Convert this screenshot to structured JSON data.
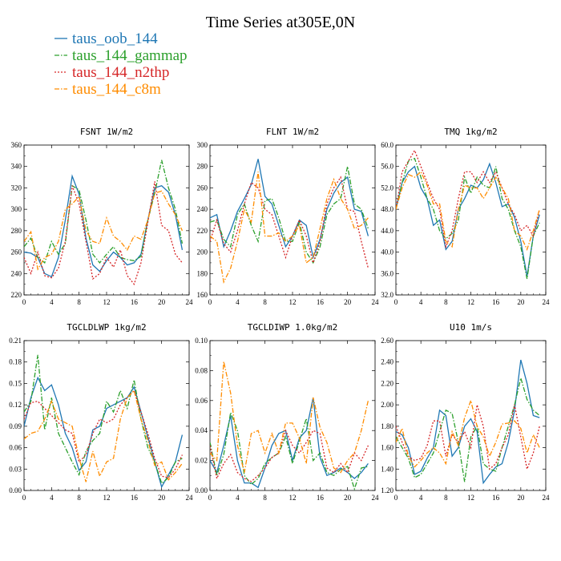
{
  "title": "Time Series at305E,0N",
  "series": [
    {
      "name": "taus_oob_144",
      "color": "#1f77b4",
      "dash": "solid"
    },
    {
      "name": "taus_144_gammap",
      "color": "#2ca02c",
      "dash": "dashdot"
    },
    {
      "name": "taus_144_n2thp",
      "color": "#d62728",
      "dash": "dotted"
    },
    {
      "name": "taus_144_c8m",
      "color": "#ff8c00",
      "dash": "dashdot"
    }
  ],
  "chart_data": [
    {
      "type": "line",
      "title": "FSNT   1W/m2",
      "x": [
        0,
        1,
        2,
        3,
        4,
        5,
        6,
        7,
        8,
        9,
        10,
        11,
        12,
        13,
        14,
        15,
        16,
        17,
        18,
        19,
        20,
        21,
        22,
        23
      ],
      "xlim": [
        0,
        24
      ],
      "xticks": [
        0,
        4,
        8,
        12,
        16,
        20,
        24
      ],
      "ylim": [
        220,
        360
      ],
      "yticks": [
        220,
        240,
        260,
        280,
        300,
        320,
        340,
        360
      ],
      "ytick_labels": [
        "220",
        "240",
        "260",
        "280",
        "300",
        "320",
        "340",
        "360"
      ],
      "series": [
        {
          "name": "taus_oob_144",
          "values": [
            260,
            259,
            255,
            240,
            237,
            255,
            290,
            331,
            314,
            273,
            248,
            242,
            252,
            260,
            255,
            248,
            250,
            258,
            290,
            320,
            322,
            316,
            295,
            262
          ]
        },
        {
          "name": "taus_144_gammap",
          "values": [
            265,
            273,
            255,
            250,
            270,
            258,
            268,
            322,
            318,
            290,
            258,
            250,
            258,
            265,
            255,
            253,
            252,
            256,
            290,
            315,
            346,
            320,
            300,
            268
          ]
        },
        {
          "name": "taus_144_n2thp",
          "values": [
            255,
            240,
            260,
            238,
            236,
            245,
            270,
            322,
            305,
            270,
            235,
            240,
            255,
            246,
            262,
            238,
            230,
            250,
            288,
            326,
            285,
            280,
            258,
            250
          ]
        },
        {
          "name": "taus_144_c8m",
          "values": [
            270,
            279,
            244,
            255,
            258,
            270,
            300,
            305,
            312,
            280,
            270,
            268,
            292,
            275,
            270,
            262,
            275,
            272,
            290,
            315,
            317,
            305,
            295,
            280
          ]
        }
      ]
    },
    {
      "type": "line",
      "title": "FLNT   1W/m2",
      "x": [
        0,
        1,
        2,
        3,
        4,
        5,
        6,
        7,
        8,
        9,
        10,
        11,
        12,
        13,
        14,
        15,
        16,
        17,
        18,
        19,
        20,
        21,
        22,
        23
      ],
      "xlim": [
        0,
        24
      ],
      "xticks": [
        0,
        4,
        8,
        12,
        16,
        20,
        24
      ],
      "ylim": [
        160,
        300
      ],
      "yticks": [
        160,
        180,
        200,
        220,
        240,
        260,
        280,
        300
      ],
      "ytick_labels": [
        "160",
        "180",
        "200",
        "220",
        "240",
        "260",
        "280",
        "300"
      ],
      "series": [
        {
          "name": "taus_oob_144",
          "values": [
            232,
            235,
            205,
            220,
            238,
            250,
            263,
            287,
            252,
            245,
            225,
            205,
            215,
            230,
            225,
            195,
            212,
            240,
            255,
            265,
            270,
            240,
            238,
            215
          ]
        },
        {
          "name": "taus_144_gammap",
          "values": [
            228,
            230,
            212,
            205,
            235,
            245,
            225,
            210,
            248,
            250,
            232,
            210,
            210,
            228,
            200,
            190,
            205,
            235,
            245,
            250,
            280,
            245,
            240,
            222
          ]
        },
        {
          "name": "taus_144_n2thp",
          "values": [
            210,
            230,
            208,
            200,
            220,
            245,
            265,
            260,
            240,
            235,
            215,
            195,
            215,
            230,
            215,
            190,
            210,
            245,
            260,
            270,
            240,
            238,
            210,
            185
          ]
        },
        {
          "name": "taus_144_c8m",
          "values": [
            215,
            210,
            172,
            185,
            210,
            240,
            228,
            275,
            215,
            215,
            218,
            210,
            215,
            225,
            190,
            195,
            222,
            250,
            268,
            250,
            240,
            222,
            225,
            232
          ]
        }
      ]
    },
    {
      "type": "line",
      "title": "TMQ   1kg/m2",
      "x": [
        0,
        1,
        2,
        3,
        4,
        5,
        6,
        7,
        8,
        9,
        10,
        11,
        12,
        13,
        14,
        15,
        16,
        17,
        18,
        19,
        20,
        21,
        22,
        23
      ],
      "xlim": [
        0,
        24
      ],
      "xticks": [
        0,
        4,
        8,
        12,
        16,
        20,
        24
      ],
      "ylim": [
        32,
        60
      ],
      "yticks": [
        32,
        36,
        40,
        44,
        48,
        52,
        56,
        60
      ],
      "ytick_labels": [
        "32.0",
        "36.0",
        "40.0",
        "44.0",
        "48.0",
        "52.0",
        "56.0",
        "60.0"
      ],
      "series": [
        {
          "name": "taus_oob_144",
          "values": [
            48,
            53,
            55,
            56,
            52,
            50,
            45,
            46,
            40.5,
            42,
            48,
            50,
            52.5,
            52,
            53.5,
            56.5,
            53,
            48.5,
            49,
            46.5,
            42,
            35.5,
            43,
            47
          ]
        },
        {
          "name": "taus_144_gammap",
          "values": [
            48,
            53,
            57,
            57.5,
            54,
            50,
            48,
            44,
            42.5,
            43.5,
            46,
            54,
            51,
            54,
            52.5,
            52,
            56,
            50,
            48,
            44,
            41,
            35,
            43,
            45.5
          ]
        },
        {
          "name": "taus_144_n2thp",
          "values": [
            48,
            55,
            57,
            59,
            56,
            53,
            50,
            48,
            41,
            44,
            50,
            55,
            55,
            53,
            55,
            53,
            55,
            52,
            49,
            47,
            44,
            45,
            43,
            48
          ]
        },
        {
          "name": "taus_144_c8m",
          "values": [
            48,
            52,
            54.5,
            54,
            55,
            52.5,
            49,
            49,
            42,
            41,
            48,
            52.5,
            52,
            52,
            50,
            52,
            54,
            52,
            50,
            44,
            43,
            40.5,
            44,
            48
          ]
        }
      ]
    },
    {
      "type": "line",
      "title": "TGCLDLWP   1kg/m2",
      "x": [
        0,
        1,
        2,
        3,
        4,
        5,
        6,
        7,
        8,
        9,
        10,
        11,
        12,
        13,
        14,
        15,
        16,
        17,
        18,
        19,
        20,
        21,
        22,
        23
      ],
      "xlim": [
        0,
        24
      ],
      "xticks": [
        0,
        4,
        8,
        12,
        16,
        20,
        24
      ],
      "ylim": [
        0,
        0.21
      ],
      "yticks": [
        0,
        0.03,
        0.06,
        0.09,
        0.12,
        0.15,
        0.18,
        0.21
      ],
      "ytick_labels": [
        "0.00",
        "0.03",
        "0.06",
        "0.09",
        "0.12",
        "0.15",
        "0.18",
        "0.21"
      ],
      "series": [
        {
          "name": "taus_oob_144",
          "values": [
            0.09,
            0.13,
            0.158,
            0.14,
            0.148,
            0.12,
            0.08,
            0.06,
            0.028,
            0.04,
            0.085,
            0.09,
            0.115,
            0.12,
            0.125,
            0.13,
            0.145,
            0.11,
            0.075,
            0.04,
            0.005,
            0.022,
            0.04,
            0.078
          ]
        },
        {
          "name": "taus_144_gammap",
          "values": [
            0.11,
            0.125,
            0.19,
            0.085,
            0.13,
            0.08,
            0.06,
            0.04,
            0.022,
            0.055,
            0.07,
            0.08,
            0.125,
            0.11,
            0.14,
            0.115,
            0.155,
            0.1,
            0.06,
            0.04,
            0.01,
            0.018,
            0.04,
            0.045
          ]
        },
        {
          "name": "taus_144_n2thp",
          "values": [
            0.1,
            0.123,
            0.125,
            0.115,
            0.105,
            0.095,
            0.085,
            0.08,
            0.04,
            0.05,
            0.08,
            0.1,
            0.095,
            0.1,
            0.12,
            0.13,
            0.14,
            0.11,
            0.08,
            0.045,
            0.02,
            0.018,
            0.03,
            0.05
          ]
        },
        {
          "name": "taus_144_c8m",
          "values": [
            0.072,
            0.08,
            0.083,
            0.1,
            0.125,
            0.1,
            0.095,
            0.09,
            0.045,
            0.012,
            0.055,
            0.02,
            0.04,
            0.045,
            0.1,
            0.13,
            0.14,
            0.1,
            0.07,
            0.035,
            0.04,
            0.015,
            0.025,
            0.038
          ]
        }
      ]
    },
    {
      "type": "line",
      "title": "TGCLDIWP   1.0kg/m2",
      "x": [
        0,
        1,
        2,
        3,
        4,
        5,
        6,
        7,
        8,
        9,
        10,
        11,
        12,
        13,
        14,
        15,
        16,
        17,
        18,
        19,
        20,
        21,
        22,
        23
      ],
      "xlim": [
        0,
        24
      ],
      "xticks": [
        0,
        4,
        8,
        12,
        16,
        20,
        24
      ],
      "ylim": [
        0,
        0.1
      ],
      "yticks": [
        0,
        0.02,
        0.04,
        0.06,
        0.08,
        0.1
      ],
      "ytick_labels": [
        "0.00",
        "0.02",
        "0.04",
        "0.06",
        "0.08",
        "0.10"
      ],
      "series": [
        {
          "name": "taus_oob_144",
          "values": [
            0.02,
            0.012,
            0.03,
            0.05,
            0.02,
            0.005,
            0.005,
            0.002,
            0.015,
            0.03,
            0.038,
            0.04,
            0.02,
            0.035,
            0.04,
            0.062,
            0.022,
            0.01,
            0.012,
            0.015,
            0.012,
            0.008,
            0.012,
            0.018
          ]
        },
        {
          "name": "taus_144_gammap",
          "values": [
            0.032,
            0.01,
            0.024,
            0.052,
            0.04,
            0.01,
            0.004,
            0.008,
            0.018,
            0.022,
            0.025,
            0.036,
            0.018,
            0.033,
            0.048,
            0.02,
            0.025,
            0.012,
            0.01,
            0.014,
            0.016,
            0.001,
            0.015,
            0.016
          ]
        },
        {
          "name": "taus_144_n2thp",
          "values": [
            0.03,
            0.008,
            0.018,
            0.024,
            0.012,
            0.008,
            0.006,
            0.01,
            0.015,
            0.022,
            0.025,
            0.04,
            0.03,
            0.025,
            0.032,
            0.04,
            0.038,
            0.015,
            0.012,
            0.018,
            0.012,
            0.025,
            0.02,
            0.03
          ]
        },
        {
          "name": "taus_144_c8m",
          "values": [
            0.025,
            0.02,
            0.086,
            0.065,
            0.03,
            0.012,
            0.038,
            0.04,
            0.025,
            0.038,
            0.025,
            0.045,
            0.045,
            0.035,
            0.018,
            0.062,
            0.042,
            0.032,
            0.015,
            0.012,
            0.02,
            0.025,
            0.04,
            0.06
          ]
        }
      ]
    },
    {
      "type": "line",
      "title": "U10   1m/s",
      "x": [
        0,
        1,
        2,
        3,
        4,
        5,
        6,
        7,
        8,
        9,
        10,
        11,
        12,
        13,
        14,
        15,
        16,
        17,
        18,
        19,
        20,
        21,
        22,
        23
      ],
      "xlim": [
        0,
        24
      ],
      "xticks": [
        0,
        4,
        8,
        12,
        16,
        20,
        24
      ],
      "ylim": [
        1.2,
        2.6
      ],
      "yticks": [
        1.2,
        1.4,
        1.6,
        1.8,
        2.0,
        2.2,
        2.4,
        2.6
      ],
      "ytick_labels": [
        "1.20",
        "1.40",
        "1.60",
        "1.80",
        "2.00",
        "2.20",
        "2.40",
        "2.60"
      ],
      "series": [
        {
          "name": "taus_oob_144",
          "values": [
            1.75,
            1.72,
            1.6,
            1.35,
            1.38,
            1.5,
            1.6,
            1.95,
            1.9,
            1.52,
            1.6,
            1.8,
            1.87,
            1.75,
            1.27,
            1.35,
            1.42,
            1.45,
            1.65,
            1.95,
            2.42,
            2.2,
            1.9,
            1.88
          ]
        },
        {
          "name": "taus_144_gammap",
          "values": [
            1.7,
            1.6,
            1.5,
            1.32,
            1.35,
            1.45,
            1.55,
            1.75,
            1.95,
            1.92,
            1.65,
            1.28,
            1.7,
            1.8,
            1.45,
            1.4,
            1.38,
            1.6,
            1.8,
            2.0,
            2.25,
            2.05,
            1.95,
            1.9
          ]
        },
        {
          "name": "taus_144_n2thp",
          "values": [
            1.8,
            1.65,
            1.52,
            1.48,
            1.5,
            1.62,
            1.85,
            1.85,
            1.52,
            1.72,
            1.65,
            1.75,
            1.6,
            2.0,
            1.8,
            1.4,
            1.45,
            1.6,
            1.72,
            2.0,
            1.7,
            1.4,
            1.55,
            1.8
          ]
        },
        {
          "name": "taus_144_c8m",
          "values": [
            1.65,
            1.78,
            1.52,
            1.42,
            1.48,
            1.55,
            1.6,
            1.55,
            1.45,
            1.75,
            1.62,
            1.88,
            2.04,
            1.8,
            1.7,
            1.52,
            1.65,
            1.82,
            1.83,
            1.85,
            1.78,
            1.55,
            1.72,
            1.6
          ]
        }
      ]
    }
  ]
}
